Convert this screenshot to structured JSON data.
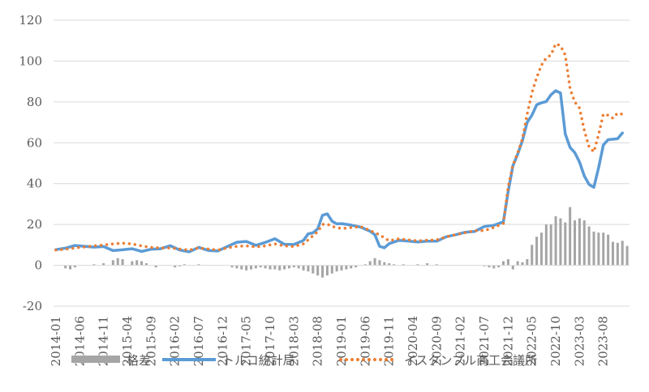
{
  "chart_data": {
    "type": "bar+line",
    "title": "",
    "xlabel": "",
    "ylabel": "",
    "ylim": [
      -20,
      120
    ],
    "yticks": [
      -20,
      0,
      20,
      40,
      60,
      80,
      100,
      120
    ],
    "x_start": "2014-01",
    "x_end": "2024-01",
    "xtick_labels": [
      "2014-01",
      "2014-06",
      "2014-11",
      "2015-04",
      "2015-09",
      "2016-02",
      "2016-07",
      "2016-12",
      "2017-05",
      "2017-10",
      "2018-03",
      "2018-08",
      "2019-01",
      "2019-06",
      "2019-11",
      "2020-04",
      "2020-09",
      "2021-02",
      "2021-07",
      "2021-12",
      "2022-05",
      "2022-10",
      "2023-03",
      "2023-08"
    ],
    "grid": true,
    "legend_position": "bottom",
    "series": [
      {
        "name": "格差",
        "kind": "bar",
        "color": "#a5a5a5",
        "points": [
          [
            "2014-01",
            0
          ],
          [
            "2014-03",
            -1.5
          ],
          [
            "2014-04",
            -2
          ],
          [
            "2014-05",
            -1
          ],
          [
            "2014-07",
            0
          ],
          [
            "2014-09",
            0.5
          ],
          [
            "2014-11",
            1
          ],
          [
            "2015-01",
            2.5
          ],
          [
            "2015-02",
            3.5
          ],
          [
            "2015-03",
            3
          ],
          [
            "2015-05",
            2
          ],
          [
            "2015-06",
            2.5
          ],
          [
            "2015-07",
            2
          ],
          [
            "2015-08",
            1
          ],
          [
            "2015-10",
            -1
          ],
          [
            "2015-12",
            0
          ],
          [
            "2016-02",
            -1
          ],
          [
            "2016-03",
            -0.5
          ],
          [
            "2016-04",
            0.5
          ],
          [
            "2016-05",
            0
          ],
          [
            "2016-07",
            0.5
          ],
          [
            "2016-10",
            0
          ],
          [
            "2016-12",
            0
          ],
          [
            "2017-02",
            -1
          ],
          [
            "2017-03",
            -1.5
          ],
          [
            "2017-04",
            -2
          ],
          [
            "2017-05",
            -2.5
          ],
          [
            "2017-06",
            -2
          ],
          [
            "2017-07",
            -1.5
          ],
          [
            "2017-08",
            -1
          ],
          [
            "2017-09",
            -1.5
          ],
          [
            "2017-10",
            -2
          ],
          [
            "2017-11",
            -2
          ],
          [
            "2017-12",
            -2.5
          ],
          [
            "2018-01",
            -2
          ],
          [
            "2018-02",
            -1.5
          ],
          [
            "2018-03",
            -1
          ],
          [
            "2018-04",
            -1.5
          ],
          [
            "2018-05",
            -2.5
          ],
          [
            "2018-06",
            -3
          ],
          [
            "2018-07",
            -4
          ],
          [
            "2018-08",
            -5
          ],
          [
            "2018-09",
            -6
          ],
          [
            "2018-10",
            -5
          ],
          [
            "2018-11",
            -4
          ],
          [
            "2018-12",
            -3
          ],
          [
            "2019-01",
            -2.5
          ],
          [
            "2019-02",
            -2
          ],
          [
            "2019-03",
            -1.5
          ],
          [
            "2019-04",
            -1
          ],
          [
            "2019-06",
            0.5
          ],
          [
            "2019-07",
            2
          ],
          [
            "2019-08",
            3.5
          ],
          [
            "2019-09",
            2.5
          ],
          [
            "2019-10",
            1.5
          ],
          [
            "2019-11",
            1
          ],
          [
            "2019-12",
            0.5
          ],
          [
            "2020-02",
            0.5
          ],
          [
            "2020-05",
            0.5
          ],
          [
            "2020-07",
            1
          ],
          [
            "2020-09",
            0.5
          ],
          [
            "2020-11",
            0
          ],
          [
            "2021-01",
            0
          ],
          [
            "2021-03",
            0
          ],
          [
            "2021-05",
            0
          ],
          [
            "2021-07",
            -0.5
          ],
          [
            "2021-08",
            -1
          ],
          [
            "2021-09",
            -1.5
          ],
          [
            "2021-10",
            -1
          ],
          [
            "2021-11",
            2
          ],
          [
            "2021-12",
            3
          ],
          [
            "2022-01",
            -2
          ],
          [
            "2022-02",
            2
          ],
          [
            "2022-03",
            1.5
          ],
          [
            "2022-04",
            3
          ],
          [
            "2022-05",
            10
          ],
          [
            "2022-06",
            14
          ],
          [
            "2022-07",
            16
          ],
          [
            "2022-08",
            20
          ],
          [
            "2022-09",
            20
          ],
          [
            "2022-10",
            24
          ],
          [
            "2022-11",
            23
          ],
          [
            "2022-12",
            21
          ],
          [
            "2023-01",
            28.5
          ],
          [
            "2023-02",
            22
          ],
          [
            "2023-03",
            23
          ],
          [
            "2023-04",
            22
          ],
          [
            "2023-05",
            19
          ],
          [
            "2023-06",
            16.5
          ],
          [
            "2023-07",
            16
          ],
          [
            "2023-08",
            16
          ],
          [
            "2023-09",
            15
          ],
          [
            "2023-10",
            11.5
          ],
          [
            "2023-11",
            11
          ],
          [
            "2023-12",
            12
          ],
          [
            "2024-01",
            9.5
          ]
        ]
      },
      {
        "name": "トルコ統計局",
        "kind": "line",
        "color": "#5b9bd5",
        "points": [
          [
            "2014-01",
            7.7
          ],
          [
            "2014-03",
            8.4
          ],
          [
            "2014-05",
            9.7
          ],
          [
            "2014-07",
            9.3
          ],
          [
            "2014-09",
            8.9
          ],
          [
            "2014-11",
            9.2
          ],
          [
            "2015-01",
            7.2
          ],
          [
            "2015-03",
            7.6
          ],
          [
            "2015-05",
            8.1
          ],
          [
            "2015-07",
            6.8
          ],
          [
            "2015-09",
            7.9
          ],
          [
            "2015-11",
            8.1
          ],
          [
            "2016-01",
            9.6
          ],
          [
            "2016-03",
            7.5
          ],
          [
            "2016-05",
            6.6
          ],
          [
            "2016-07",
            8.8
          ],
          [
            "2016-09",
            7.3
          ],
          [
            "2016-11",
            7.0
          ],
          [
            "2017-01",
            9.2
          ],
          [
            "2017-03",
            11.3
          ],
          [
            "2017-05",
            11.7
          ],
          [
            "2017-07",
            9.8
          ],
          [
            "2017-09",
            11.2
          ],
          [
            "2017-11",
            13.0
          ],
          [
            "2018-01",
            10.3
          ],
          [
            "2018-03",
            10.2
          ],
          [
            "2018-05",
            12.2
          ],
          [
            "2018-06",
            15.4
          ],
          [
            "2018-07",
            15.9
          ],
          [
            "2018-08",
            17.9
          ],
          [
            "2018-09",
            24.5
          ],
          [
            "2018-10",
            25.2
          ],
          [
            "2018-11",
            21.6
          ],
          [
            "2018-12",
            20.3
          ],
          [
            "2019-01",
            20.4
          ],
          [
            "2019-03",
            19.7
          ],
          [
            "2019-05",
            18.7
          ],
          [
            "2019-07",
            16.7
          ],
          [
            "2019-08",
            15.0
          ],
          [
            "2019-09",
            9.3
          ],
          [
            "2019-10",
            8.6
          ],
          [
            "2019-11",
            10.6
          ],
          [
            "2020-01",
            12.2
          ],
          [
            "2020-03",
            11.9
          ],
          [
            "2020-05",
            11.4
          ],
          [
            "2020-07",
            11.8
          ],
          [
            "2020-09",
            11.8
          ],
          [
            "2020-11",
            14.0
          ],
          [
            "2021-01",
            15.0
          ],
          [
            "2021-03",
            16.2
          ],
          [
            "2021-05",
            16.6
          ],
          [
            "2021-07",
            19.0
          ],
          [
            "2021-09",
            19.6
          ],
          [
            "2021-11",
            21.3
          ],
          [
            "2021-12",
            36.1
          ],
          [
            "2022-01",
            48.7
          ],
          [
            "2022-02",
            54.4
          ],
          [
            "2022-03",
            61.1
          ],
          [
            "2022-04",
            70.0
          ],
          [
            "2022-05",
            73.5
          ],
          [
            "2022-06",
            78.6
          ],
          [
            "2022-07",
            79.6
          ],
          [
            "2022-08",
            80.2
          ],
          [
            "2022-09",
            83.5
          ],
          [
            "2022-10",
            85.5
          ],
          [
            "2022-11",
            84.4
          ],
          [
            "2022-12",
            64.3
          ],
          [
            "2023-01",
            57.7
          ],
          [
            "2023-02",
            55.2
          ],
          [
            "2023-03",
            50.5
          ],
          [
            "2023-04",
            43.7
          ],
          [
            "2023-05",
            39.6
          ],
          [
            "2023-06",
            38.2
          ],
          [
            "2023-07",
            47.8
          ],
          [
            "2023-08",
            58.9
          ],
          [
            "2023-09",
            61.5
          ],
          [
            "2023-11",
            62.0
          ],
          [
            "2023-12",
            64.8
          ]
        ]
      },
      {
        "name": "イスタンブル商工会議所",
        "kind": "line",
        "style": "dotted",
        "color": "#ed7d31",
        "points": [
          [
            "2014-01",
            7.5
          ],
          [
            "2014-03",
            7.9
          ],
          [
            "2014-05",
            8.5
          ],
          [
            "2014-07",
            9.0
          ],
          [
            "2014-09",
            9.5
          ],
          [
            "2014-11",
            10.0
          ],
          [
            "2015-01",
            10.5
          ],
          [
            "2015-03",
            10.8
          ],
          [
            "2015-05",
            10.5
          ],
          [
            "2015-07",
            9.5
          ],
          [
            "2015-09",
            8.8
          ],
          [
            "2015-11",
            8.5
          ],
          [
            "2016-01",
            8.5
          ],
          [
            "2016-03",
            8.0
          ],
          [
            "2016-05",
            7.5
          ],
          [
            "2016-07",
            8.5
          ],
          [
            "2016-09",
            8.0
          ],
          [
            "2016-11",
            7.5
          ],
          [
            "2017-01",
            8.5
          ],
          [
            "2017-03",
            9.3
          ],
          [
            "2017-05",
            9.5
          ],
          [
            "2017-07",
            9.0
          ],
          [
            "2017-09",
            9.5
          ],
          [
            "2017-11",
            10.5
          ],
          [
            "2018-01",
            9.5
          ],
          [
            "2018-03",
            9.2
          ],
          [
            "2018-05",
            10.5
          ],
          [
            "2018-07",
            14.5
          ],
          [
            "2018-08",
            16.5
          ],
          [
            "2018-09",
            20.0
          ],
          [
            "2018-10",
            20.2
          ],
          [
            "2018-11",
            19.0
          ],
          [
            "2019-01",
            18.0
          ],
          [
            "2019-03",
            18.5
          ],
          [
            "2019-05",
            19.0
          ],
          [
            "2019-07",
            17.0
          ],
          [
            "2019-09",
            15.0
          ],
          [
            "2019-11",
            12.0
          ],
          [
            "2020-01",
            13.0
          ],
          [
            "2020-03",
            12.5
          ],
          [
            "2020-05",
            12.0
          ],
          [
            "2020-07",
            12.3
          ],
          [
            "2020-09",
            12.5
          ],
          [
            "2020-11",
            14.0
          ],
          [
            "2021-01",
            15.0
          ],
          [
            "2021-03",
            16.0
          ],
          [
            "2021-05",
            17.0
          ],
          [
            "2021-07",
            17.0
          ],
          [
            "2021-09",
            18.5
          ],
          [
            "2021-11",
            20.5
          ],
          [
            "2021-12",
            38.5
          ],
          [
            "2022-01",
            49.0
          ],
          [
            "2022-02",
            55.0
          ],
          [
            "2022-03",
            62.0
          ],
          [
            "2022-04",
            74.0
          ],
          [
            "2022-05",
            84.5
          ],
          [
            "2022-06",
            92.0
          ],
          [
            "2022-07",
            98.0
          ],
          [
            "2022-08",
            101.5
          ],
          [
            "2022-09",
            103.0
          ],
          [
            "2022-10",
            108.5
          ],
          [
            "2022-11",
            107.5
          ],
          [
            "2022-12",
            103.0
          ],
          [
            "2023-01",
            86.5
          ],
          [
            "2023-02",
            80.0
          ],
          [
            "2023-03",
            77.0
          ],
          [
            "2023-04",
            66.0
          ],
          [
            "2023-05",
            58.0
          ],
          [
            "2023-06",
            55.5
          ],
          [
            "2023-07",
            64.0
          ],
          [
            "2023-08",
            74.0
          ],
          [
            "2023-09",
            73.5
          ],
          [
            "2023-10",
            72.0
          ],
          [
            "2023-11",
            74.5
          ],
          [
            "2023-12",
            74.0
          ]
        ]
      }
    ]
  }
}
